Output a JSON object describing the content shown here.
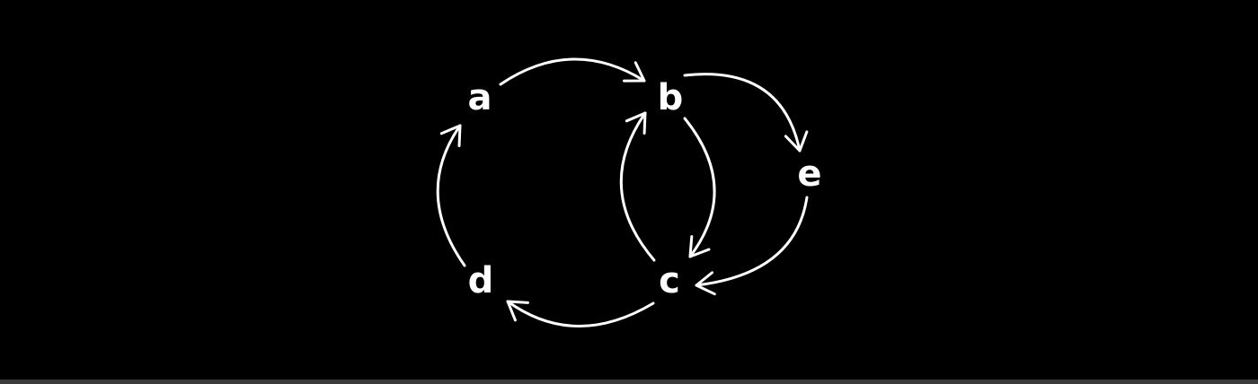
{
  "diagram": {
    "type": "directed-graph",
    "colors": {
      "background": "#000000",
      "foreground": "#ffffff",
      "bottom_strip": "#3b3b3b"
    },
    "nodes": [
      {
        "id": "a",
        "label": "a"
      },
      {
        "id": "b",
        "label": "b"
      },
      {
        "id": "c",
        "label": "c"
      },
      {
        "id": "d",
        "label": "d"
      },
      {
        "id": "e",
        "label": "e"
      }
    ],
    "edges": [
      {
        "from": "a",
        "to": "b"
      },
      {
        "from": "b",
        "to": "e"
      },
      {
        "from": "e",
        "to": "c"
      },
      {
        "from": "b",
        "to": "c"
      },
      {
        "from": "c",
        "to": "b"
      },
      {
        "from": "c",
        "to": "d"
      },
      {
        "from": "d",
        "to": "a"
      }
    ]
  }
}
